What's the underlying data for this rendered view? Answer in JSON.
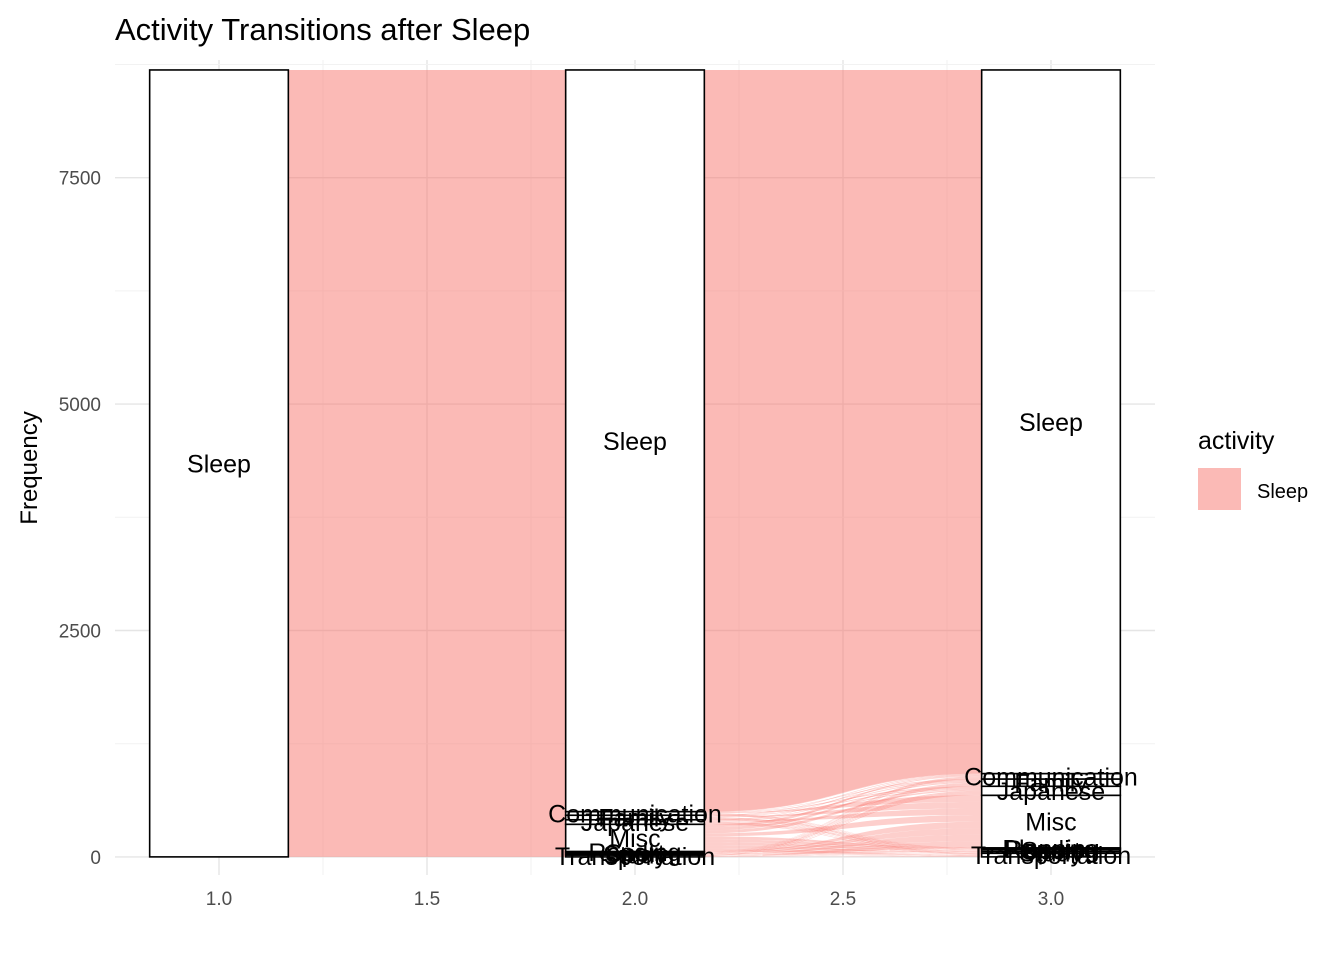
{
  "chart_data": {
    "type": "alluvial",
    "title": "Activity Transitions after Sleep",
    "xlabel": "",
    "ylabel": "Frequency",
    "xlim": [
      0.75,
      3.25
    ],
    "ylim": [
      -200,
      8800
    ],
    "x_ticks": [
      1.0,
      1.5,
      2.0,
      2.5,
      3.0
    ],
    "x_tick_labels": [
      "1.0",
      "1.5",
      "2.0",
      "2.5",
      "3.0"
    ],
    "y_ticks": [
      0,
      2500,
      5000,
      7500
    ],
    "y_tick_labels": [
      "0",
      "2500",
      "5000",
      "7500"
    ],
    "grid": true,
    "legend": {
      "title": "activity",
      "position": "right",
      "entries": [
        {
          "label": "Sleep",
          "color": "#F8766D"
        }
      ]
    },
    "flow_color": "#F8766D",
    "axes": [
      {
        "x": 1,
        "strata": [
          {
            "label": "Sleep",
            "value": 8690
          }
        ]
      },
      {
        "x": 2,
        "strata": [
          {
            "label": "Transportation",
            "value": 20
          },
          {
            "label": "Study",
            "value": 15
          },
          {
            "label": "Sport",
            "value": 15
          },
          {
            "label": "Reading",
            "value": 10
          },
          {
            "label": "Misc",
            "value": 300
          },
          {
            "label": "Japanese",
            "value": 50
          },
          {
            "label": "Family",
            "value": 50
          },
          {
            "label": "Communication",
            "value": 40
          },
          {
            "label": "Sleep",
            "value": 8190
          }
        ]
      },
      {
        "x": 3,
        "strata": [
          {
            "label": "Transportation",
            "value": 40
          },
          {
            "label": "Study",
            "value": 20
          },
          {
            "label": "Sport",
            "value": 20
          },
          {
            "label": "Reading",
            "value": 10
          },
          {
            "label": "Planning",
            "value": 10
          },
          {
            "label": "Misc",
            "value": 580
          },
          {
            "label": "Japanese",
            "value": 100
          },
          {
            "label": "Family",
            "value": 80
          },
          {
            "label": "Communication",
            "value": 60
          },
          {
            "label": "Sleep",
            "value": 7770
          }
        ]
      }
    ]
  }
}
